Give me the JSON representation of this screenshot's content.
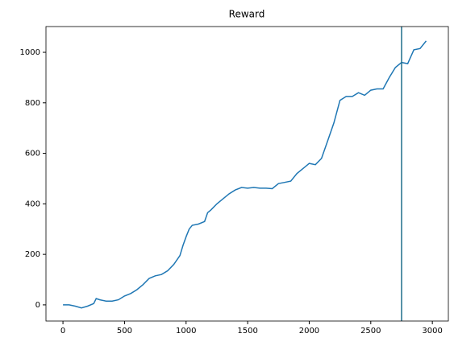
{
  "chart_data": {
    "type": "line",
    "title": "Reward",
    "x": [
      0,
      50,
      100,
      150,
      200,
      250,
      270,
      300,
      350,
      400,
      450,
      500,
      550,
      600,
      650,
      700,
      750,
      800,
      850,
      900,
      950,
      975,
      1000,
      1025,
      1050,
      1100,
      1150,
      1175,
      1200,
      1250,
      1300,
      1350,
      1400,
      1450,
      1500,
      1550,
      1600,
      1650,
      1700,
      1750,
      1800,
      1850,
      1900,
      1950,
      2000,
      2050,
      2100,
      2150,
      2200,
      2250,
      2300,
      2350,
      2400,
      2450,
      2500,
      2550,
      2600,
      2650,
      2700,
      2750,
      2800,
      2850,
      2900,
      2950
    ],
    "values": [
      0,
      0,
      -5,
      -12,
      -5,
      5,
      25,
      20,
      15,
      15,
      20,
      35,
      45,
      60,
      80,
      105,
      115,
      120,
      135,
      160,
      195,
      235,
      270,
      300,
      315,
      320,
      330,
      365,
      375,
      400,
      420,
      440,
      455,
      465,
      462,
      465,
      462,
      462,
      460,
      480,
      485,
      490,
      520,
      540,
      560,
      555,
      580,
      650,
      720,
      810,
      825,
      825,
      840,
      830,
      850,
      855,
      855,
      900,
      940,
      960,
      955,
      1010,
      1015,
      1045
    ],
    "color": "#1f77b4",
    "vline": 2750,
    "vline_color": "#1f6f8b",
    "xlim": [
      -138,
      3130
    ],
    "xticks": [
      0,
      500,
      1000,
      1500,
      2000,
      2500,
      3000
    ],
    "ylim": [
      -64,
      1102
    ],
    "yticks": [
      0,
      200,
      400,
      600,
      800,
      1000
    ]
  }
}
